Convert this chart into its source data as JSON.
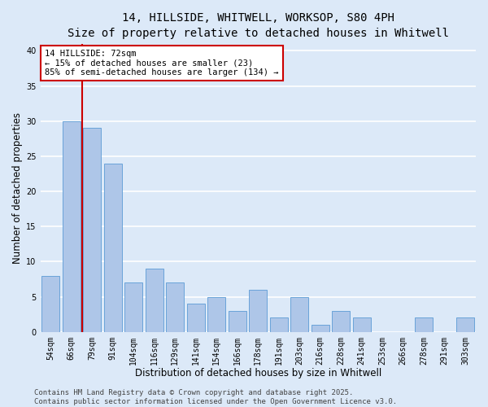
{
  "title1": "14, HILLSIDE, WHITWELL, WORKSOP, S80 4PH",
  "title2": "Size of property relative to detached houses in Whitwell",
  "xlabel": "Distribution of detached houses by size in Whitwell",
  "ylabel": "Number of detached properties",
  "categories": [
    "54sqm",
    "66sqm",
    "79sqm",
    "91sqm",
    "104sqm",
    "116sqm",
    "129sqm",
    "141sqm",
    "154sqm",
    "166sqm",
    "178sqm",
    "191sqm",
    "203sqm",
    "216sqm",
    "228sqm",
    "241sqm",
    "253sqm",
    "266sqm",
    "278sqm",
    "291sqm",
    "303sqm"
  ],
  "values": [
    8,
    30,
    29,
    24,
    7,
    9,
    7,
    4,
    5,
    3,
    6,
    2,
    5,
    1,
    3,
    2,
    0,
    0,
    2,
    0,
    2
  ],
  "bar_color": "#aec6e8",
  "bar_edge_color": "#5b9bd5",
  "background_color": "#dce9f8",
  "grid_color": "#ffffff",
  "vline_x": 1.5,
  "vline_color": "#cc0000",
  "annotation_text": "14 HILLSIDE: 72sqm\n← 15% of detached houses are smaller (23)\n85% of semi-detached houses are larger (134) →",
  "annotation_box_color": "#ffffff",
  "annotation_box_edge": "#cc0000",
  "footnote": "Contains HM Land Registry data © Crown copyright and database right 2025.\nContains public sector information licensed under the Open Government Licence v3.0.",
  "ylim": [
    0,
    41
  ],
  "yticks": [
    0,
    5,
    10,
    15,
    20,
    25,
    30,
    35,
    40
  ],
  "title_fontsize": 10,
  "subtitle_fontsize": 9,
  "axis_label_fontsize": 8.5,
  "tick_fontsize": 7,
  "annotation_fontsize": 7.5,
  "footnote_fontsize": 6.5
}
